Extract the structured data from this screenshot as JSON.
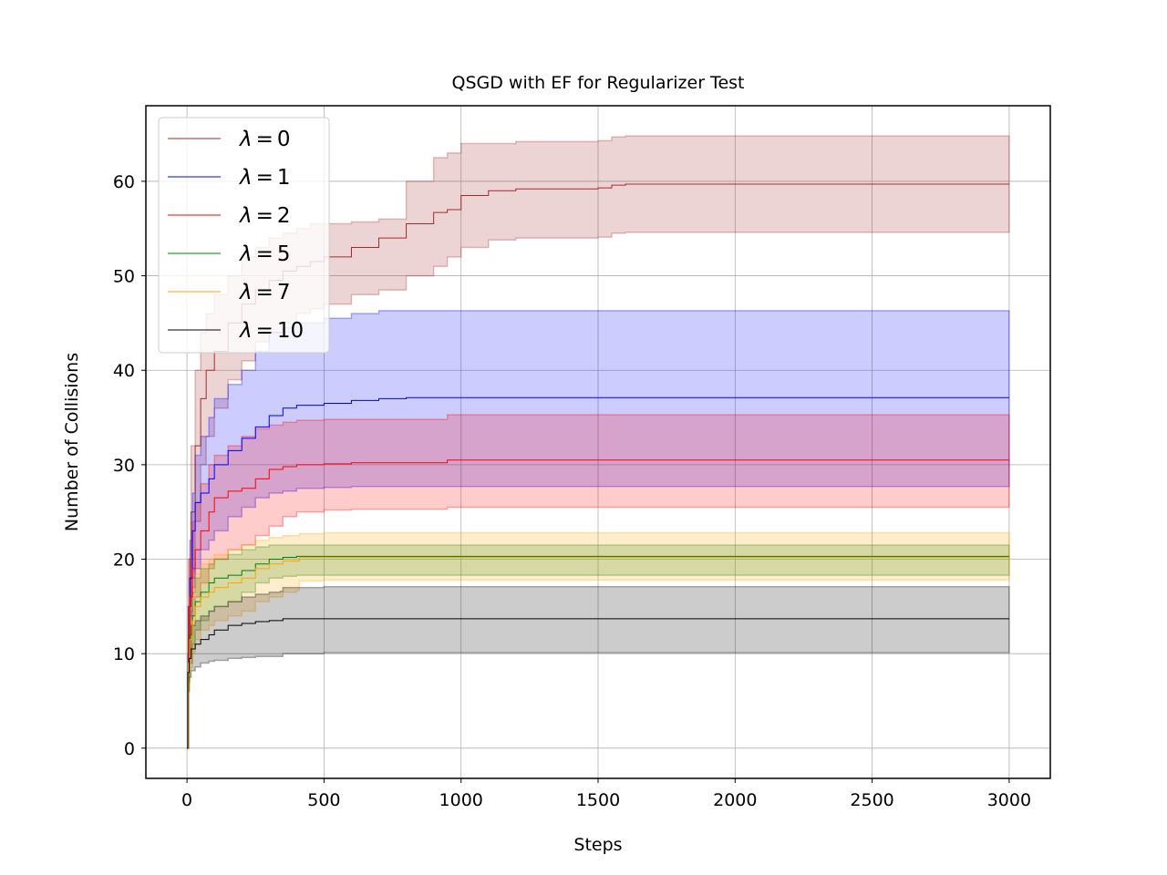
{
  "chart_data": {
    "type": "line",
    "title": "QSGD with EF for Regularizer Test",
    "xlabel": "Steps",
    "ylabel": "Number of Collisions",
    "xlim": [
      -150,
      3150
    ],
    "ylim": [
      -3.2,
      68.0
    ],
    "x_ticks": [
      0,
      500,
      1000,
      1500,
      2000,
      2500,
      3000
    ],
    "y_ticks": [
      0,
      10,
      20,
      30,
      40,
      50,
      60
    ],
    "grid": true,
    "legend_position": "top-left",
    "series": [
      {
        "name": "λ = 0",
        "legend_var": "λ",
        "legend_eq": "=",
        "legend_val": "0",
        "color": "#a52a2a",
        "x": [
          0,
          5,
          15,
          30,
          50,
          70,
          100,
          150,
          200,
          250,
          300,
          350,
          400,
          450,
          500,
          600,
          700,
          800,
          900,
          950,
          1000,
          1100,
          1200,
          1500,
          1550,
          1600,
          2000,
          2500,
          3000
        ],
        "y": [
          0,
          15,
          25,
          32,
          37,
          40,
          42,
          45,
          47,
          48.5,
          49.5,
          50.5,
          51,
          51.5,
          52,
          53,
          54,
          55.5,
          56.7,
          57,
          58.5,
          59,
          59.2,
          59.3,
          59.6,
          59.7,
          59.7,
          59.7,
          59.7
        ],
        "lower": [
          0,
          10,
          18,
          24,
          30,
          33,
          36,
          39,
          41,
          43,
          44,
          45,
          46,
          46.5,
          47,
          48,
          48.5,
          50,
          51,
          52,
          53,
          53.8,
          54,
          54.1,
          54.5,
          54.6,
          54.6,
          54.6,
          54.6
        ],
        "upper": [
          0,
          20,
          32,
          40,
          44,
          46,
          48,
          50,
          52,
          53,
          54,
          54.5,
          55,
          55.5,
          55.5,
          55.7,
          56,
          60,
          62.5,
          63,
          64,
          64,
          64.2,
          64.3,
          64.7,
          64.8,
          64.8,
          64.8,
          64.8
        ]
      },
      {
        "name": "λ = 1",
        "legend_var": "λ",
        "legend_eq": "=",
        "legend_val": "1",
        "color": "#0000ff",
        "x": [
          0,
          5,
          10,
          20,
          30,
          50,
          80,
          100,
          150,
          200,
          250,
          300,
          350,
          400,
          500,
          600,
          700,
          800,
          1000,
          2000,
          3000
        ],
        "y": [
          0,
          12,
          18,
          23,
          26,
          27,
          28.5,
          30,
          31.5,
          32.8,
          34,
          35.2,
          36,
          36.3,
          36.5,
          36.8,
          37,
          37.1,
          37.1,
          37.1,
          37.1
        ],
        "lower": [
          0,
          9,
          14,
          17,
          19,
          21,
          22,
          23,
          24.5,
          25.5,
          26.5,
          27,
          27.2,
          27.5,
          27.6,
          27.7,
          27.7,
          27.7,
          27.7,
          27.7,
          27.7
        ],
        "upper": [
          0,
          15,
          22,
          27,
          31,
          33,
          35,
          37,
          38.5,
          40,
          42,
          44,
          44.5,
          45,
          45.5,
          46,
          46.3,
          46.3,
          46.3,
          46.3,
          46.3
        ]
      },
      {
        "name": "λ = 2",
        "legend_var": "λ",
        "legend_eq": "=",
        "legend_val": "2",
        "color": "#ff0000",
        "x": [
          0,
          5,
          10,
          20,
          30,
          50,
          80,
          100,
          150,
          200,
          250,
          300,
          350,
          400,
          500,
          600,
          700,
          800,
          900,
          950,
          1000,
          2000,
          3000
        ],
        "y": [
          0,
          12,
          16,
          19,
          21,
          23,
          25,
          26.5,
          27.2,
          27.5,
          28.5,
          29.5,
          29.8,
          30,
          30.1,
          30.2,
          30.2,
          30.2,
          30.2,
          30.5,
          30.5,
          30.5,
          30.5
        ],
        "lower": [
          0,
          9,
          12,
          14,
          16,
          17.5,
          19,
          20,
          21,
          21.5,
          22.5,
          23.5,
          24.5,
          25,
          25.2,
          25.3,
          25.3,
          25.3,
          25.3,
          25.5,
          25.5,
          25.5,
          25.5
        ],
        "upper": [
          0,
          15,
          20,
          24,
          26,
          28,
          30,
          31,
          32,
          33,
          33.8,
          34.2,
          34.5,
          34.7,
          34.8,
          34.8,
          34.8,
          34.8,
          34.8,
          35.3,
          35.3,
          35.3,
          35.3
        ]
      },
      {
        "name": "λ = 5",
        "legend_var": "λ",
        "legend_eq": "=",
        "legend_val": "5",
        "color": "#008000",
        "x": [
          0,
          5,
          10,
          20,
          30,
          50,
          80,
          100,
          150,
          200,
          250,
          300,
          350,
          400,
          500,
          1000,
          2000,
          3000
        ],
        "y": [
          0,
          9,
          12,
          14,
          15.5,
          16.5,
          17.5,
          18,
          18.3,
          18.8,
          19.5,
          20,
          20.2,
          20.3,
          20.3,
          20.3,
          20.3,
          20.3
        ],
        "lower": [
          0,
          7,
          9,
          11,
          12.5,
          13.5,
          14.5,
          15,
          15.5,
          16.5,
          17.5,
          18,
          18.2,
          18.3,
          18.3,
          18.3,
          18.3,
          18.3
        ],
        "upper": [
          0,
          11,
          14.5,
          16.5,
          18,
          19,
          19.5,
          20,
          20.5,
          21,
          21.3,
          21.5,
          21.5,
          21.5,
          21.5,
          21.5,
          21.5,
          21.5
        ]
      },
      {
        "name": "λ = 7",
        "legend_var": "λ",
        "legend_eq": "=",
        "legend_val": "7",
        "color": "#ffa500",
        "x": [
          0,
          5,
          10,
          20,
          30,
          50,
          80,
          100,
          150,
          200,
          250,
          300,
          350,
          400,
          410,
          500,
          1000,
          2000,
          3000
        ],
        "y": [
          0,
          9,
          11.5,
          13.5,
          15,
          16,
          16.5,
          17,
          17.5,
          18,
          19,
          19.5,
          19.8,
          19.8,
          20.2,
          20.2,
          20.2,
          20.2,
          20.2
        ],
        "lower": [
          0,
          6,
          8.5,
          10,
          11.5,
          12.5,
          13,
          13.5,
          14,
          14.5,
          15.5,
          16,
          16.5,
          16.7,
          17.7,
          17.8,
          17.8,
          17.8,
          17.8
        ],
        "upper": [
          0,
          12,
          15,
          17,
          18.5,
          19.5,
          20,
          20.5,
          21,
          21.5,
          22,
          22.3,
          22.5,
          22.5,
          22.7,
          22.8,
          22.8,
          22.8,
          22.8
        ]
      },
      {
        "name": "λ = 10",
        "legend_var": "λ",
        "legend_eq": "=",
        "legend_val": "10",
        "color": "#000000",
        "x": [
          0,
          3,
          8,
          15,
          30,
          50,
          80,
          100,
          150,
          200,
          250,
          300,
          340,
          350,
          500,
          1000,
          2000,
          3000
        ],
        "y": [
          0,
          8,
          9.5,
          10.5,
          11,
          11.5,
          12,
          12.5,
          13,
          13.2,
          13.4,
          13.5,
          13.5,
          13.7,
          13.7,
          13.7,
          13.7,
          13.7
        ],
        "lower": [
          0,
          6,
          7.5,
          8.2,
          8.6,
          9,
          9.2,
          9.3,
          9.5,
          9.6,
          9.7,
          9.7,
          9.7,
          10,
          10.1,
          10.1,
          10.1,
          10.1
        ],
        "upper": [
          0,
          10,
          12,
          13,
          13.5,
          14,
          14.5,
          15,
          15.5,
          16,
          16.3,
          16.5,
          16.6,
          17,
          17.1,
          17.1,
          17.1,
          17.1
        ]
      }
    ]
  }
}
